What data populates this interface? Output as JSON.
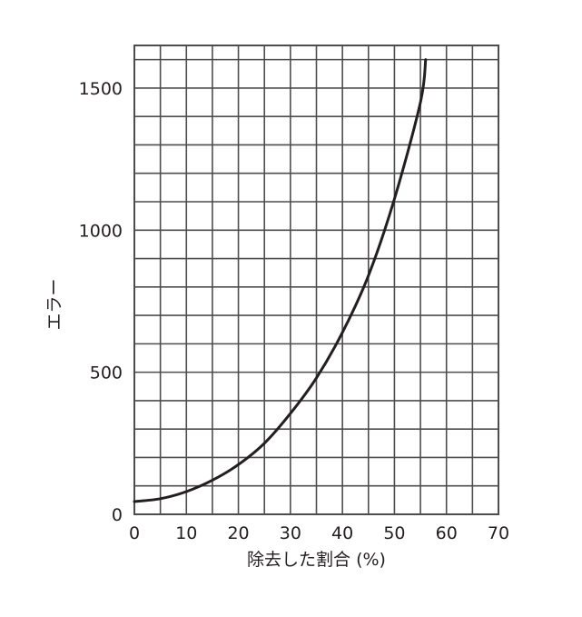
{
  "chart_data": {
    "type": "line",
    "xlabel": "除去した割合 (%)",
    "ylabel": "エラー",
    "xlim": [
      0,
      70
    ],
    "ylim": [
      0,
      1650
    ],
    "xticks": [
      0,
      10,
      20,
      30,
      40,
      50,
      60,
      70
    ],
    "yticks": [
      0,
      500,
      1000,
      1500
    ],
    "x_grid_step": 5,
    "y_grid_step": 100,
    "grid": true,
    "series": [
      {
        "x": [
          0,
          5,
          10,
          15,
          20,
          25,
          30,
          35,
          40,
          45,
          50,
          55,
          56
        ],
        "y": [
          45,
          55,
          80,
          120,
          175,
          250,
          355,
          480,
          640,
          840,
          1110,
          1450,
          1600
        ]
      }
    ]
  },
  "colors": {
    "grid": "#4d4d4d",
    "curve": "#231f20",
    "text": "#231f20",
    "background": "#ffffff"
  }
}
